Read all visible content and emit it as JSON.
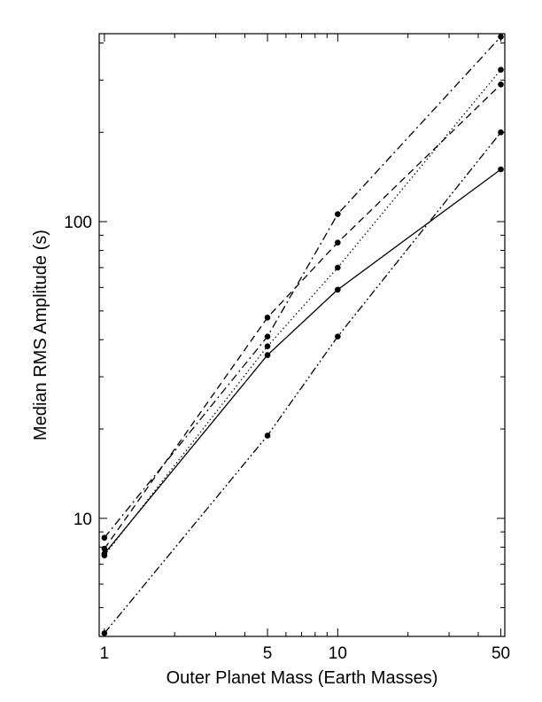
{
  "chart_data": {
    "type": "line",
    "title": "",
    "xlabel": "Outer Planet Mass (Earth Masses)",
    "ylabel": "Median RMS Amplitude (s)",
    "xscale": "log",
    "yscale": "log",
    "xlim": [
      0.95,
      52
    ],
    "ylim": [
      4.0,
      430
    ],
    "x_ticks": [
      1,
      5,
      10,
      50
    ],
    "x_tick_labels": [
      "1",
      "5",
      "10",
      "50"
    ],
    "y_ticks": [
      10,
      100
    ],
    "y_tick_labels": [
      "10",
      "100"
    ],
    "grid": false,
    "legend": "none",
    "x": [
      1,
      5,
      10,
      50
    ],
    "series": [
      {
        "style": "solid",
        "values": [
          7.6,
          35.5,
          59,
          150
        ]
      },
      {
        "style": "dashed",
        "values": [
          7.9,
          47.5,
          85,
          290
        ]
      },
      {
        "style": "dotted",
        "values": [
          7.5,
          38,
          70,
          325
        ]
      },
      {
        "style": "dashdot",
        "values": [
          8.6,
          41,
          106,
          420
        ]
      },
      {
        "style": "dashdotdot",
        "values": [
          4.1,
          19,
          41,
          200
        ]
      }
    ]
  }
}
